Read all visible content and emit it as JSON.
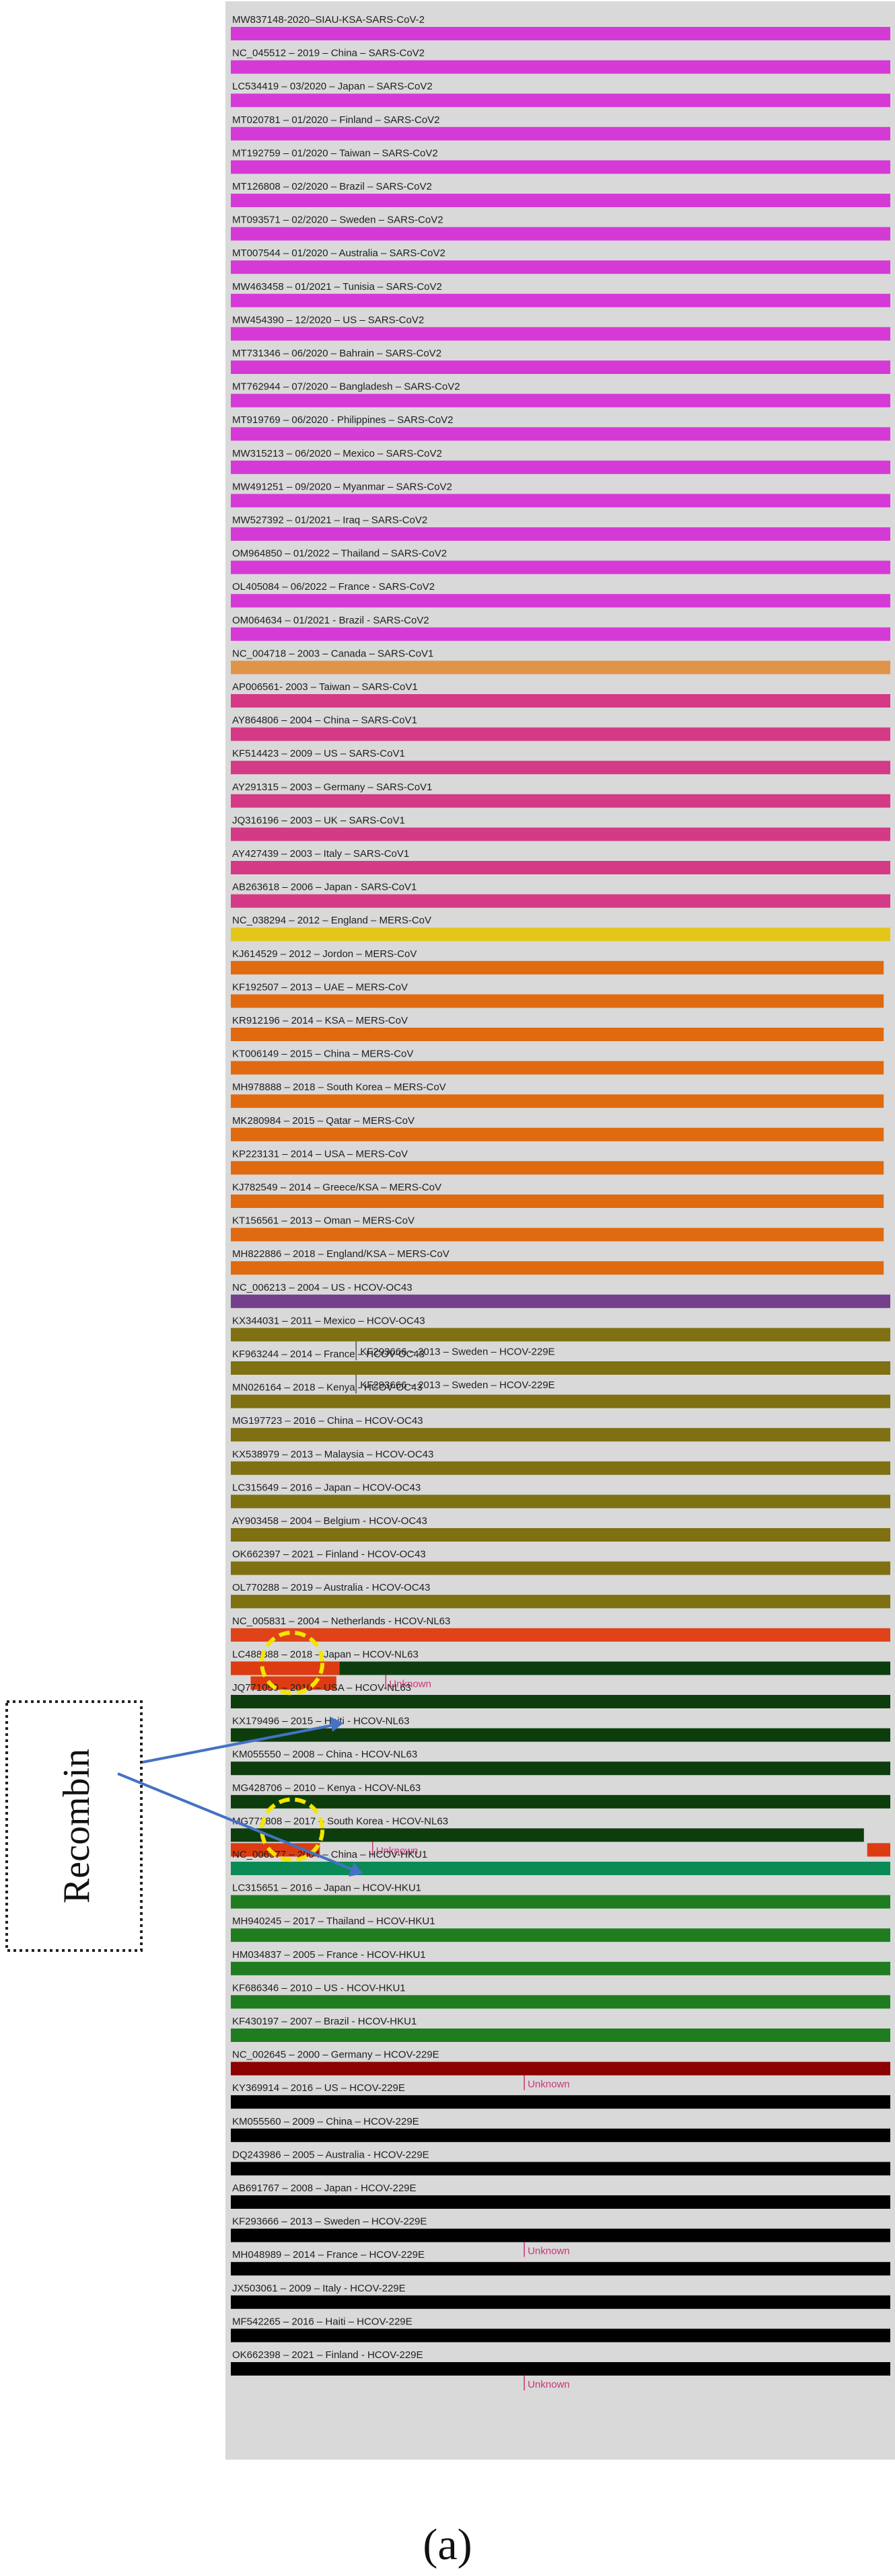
{
  "colors": {
    "panel_bg": "#d9d9d9",
    "sars_cov2": "#d63ad6",
    "sars_cov1_ref": "#e0944a",
    "sars_cov1": "#d43a86",
    "mers_ref": "#e3c61a",
    "mers": "#e06a10",
    "oc43_ref": "#74408c",
    "oc43": "#7f7012",
    "nl63_ref": "#e0421a",
    "nl63": "#0d3d0d",
    "recomb_segment": "#dd3c12",
    "hku1_ref": "#0a8a55",
    "hku1": "#1f7d1f",
    "e229_ref": "#8b0000",
    "e229": "#000000",
    "unknown_text": "#cc3377",
    "highlight_circle": "#f2e600",
    "arrow": "#4472c4"
  },
  "callout": {
    "text": "Recombin",
    "icon": "arrow-icon"
  },
  "caption": "(a)",
  "rows": [
    {
      "label": "MW837148-2020–SIAU-KSA-SARS-CoV-2",
      "color_key": "sars_cov2"
    },
    {
      "label": "NC_045512 – 2019 – China – SARS-CoV2",
      "color_key": "sars_cov2"
    },
    {
      "label": "LC534419 – 03/2020 – Japan – SARS-CoV2",
      "color_key": "sars_cov2"
    },
    {
      "label": "MT020781 – 01/2020 – Finland – SARS-CoV2",
      "color_key": "sars_cov2"
    },
    {
      "label": "MT192759 – 01/2020 – Taiwan – SARS-CoV2",
      "color_key": "sars_cov2"
    },
    {
      "label": "MT126808 – 02/2020 – Brazil – SARS-CoV2",
      "color_key": "sars_cov2"
    },
    {
      "label": "MT093571 – 02/2020 – Sweden – SARS-CoV2",
      "color_key": "sars_cov2"
    },
    {
      "label": "MT007544 – 01/2020 – Australia – SARS-CoV2",
      "color_key": "sars_cov2"
    },
    {
      "label": "MW463458 – 01/2021 – Tunisia – SARS-CoV2",
      "color_key": "sars_cov2"
    },
    {
      "label": "MW454390 – 12/2020 – US – SARS-CoV2",
      "color_key": "sars_cov2"
    },
    {
      "label": "MT731346 – 06/2020 – Bahrain – SARS-CoV2",
      "color_key": "sars_cov2"
    },
    {
      "label": "MT762944 – 07/2020 – Bangladesh – SARS-CoV2",
      "color_key": "sars_cov2"
    },
    {
      "label": "MT919769 – 06/2020 - Philippines – SARS-CoV2",
      "color_key": "sars_cov2"
    },
    {
      "label": "MW315213 – 06/2020 – Mexico – SARS-CoV2",
      "color_key": "sars_cov2"
    },
    {
      "label": "MW491251 – 09/2020 – Myanmar – SARS-CoV2",
      "color_key": "sars_cov2"
    },
    {
      "label": "MW527392 – 01/2021 – Iraq – SARS-CoV2",
      "color_key": "sars_cov2"
    },
    {
      "label": "OM964850 – 01/2022 – Thailand – SARS-CoV2",
      "color_key": "sars_cov2"
    },
    {
      "label": "OL405084 – 06/2022 – France - SARS-CoV2",
      "color_key": "sars_cov2"
    },
    {
      "label": "OM064634 – 01/2021 - Brazil - SARS-CoV2",
      "color_key": "sars_cov2"
    },
    {
      "label": "NC_004718 – 2003 – Canada – SARS-CoV1",
      "color_key": "sars_cov1_ref"
    },
    {
      "label": "AP006561- 2003 – Taiwan – SARS-CoV1",
      "color_key": "sars_cov1"
    },
    {
      "label": "AY864806 – 2004 – China – SARS-CoV1",
      "color_key": "sars_cov1"
    },
    {
      "label": "KF514423 – 2009 – US – SARS-CoV1",
      "color_key": "sars_cov1"
    },
    {
      "label": "AY291315 – 2003 – Germany – SARS-CoV1",
      "color_key": "sars_cov1"
    },
    {
      "label": "JQ316196 – 2003 – UK – SARS-CoV1",
      "color_key": "sars_cov1"
    },
    {
      "label": "AY427439 – 2003 – Italy – SARS-CoV1",
      "color_key": "sars_cov1"
    },
    {
      "label": "AB263618 – 2006 – Japan - SARS-CoV1",
      "color_key": "sars_cov1"
    },
    {
      "label": "NC_038294 – 2012 – England – MERS-CoV",
      "color_key": "mers_ref"
    },
    {
      "label": "KJ614529 – 2012 – Jordon – MERS-CoV",
      "color_key": "mers",
      "bar_end": 0.99
    },
    {
      "label": "KF192507 – 2013 – UAE – MERS-CoV",
      "color_key": "mers",
      "bar_end": 0.99
    },
    {
      "label": "KR912196 – 2014 – KSA – MERS-CoV",
      "color_key": "mers",
      "bar_end": 0.99
    },
    {
      "label": "KT006149 – 2015 – China – MERS-CoV",
      "color_key": "mers",
      "bar_end": 0.99
    },
    {
      "label": "MH978888 – 2018 – South Korea – MERS-CoV",
      "color_key": "mers",
      "bar_end": 0.99
    },
    {
      "label": "MK280984 – 2015 – Qatar – MERS-CoV",
      "color_key": "mers",
      "bar_end": 0.99
    },
    {
      "label": "KP223131 – 2014 – USA – MERS-CoV",
      "color_key": "mers",
      "bar_end": 0.99
    },
    {
      "label": "KJ782549 – 2014 – Greece/KSA – MERS-CoV",
      "color_key": "mers",
      "bar_end": 0.99
    },
    {
      "label": "KT156561 – 2013 – Oman – MERS-CoV",
      "color_key": "mers",
      "bar_end": 0.99
    },
    {
      "label": "MH822886 – 2018 – England/KSA – MERS-CoV",
      "color_key": "mers",
      "bar_end": 0.99
    },
    {
      "label": "NC_006213 – 2004 – US - HCOV-OC43",
      "color_key": "oc43_ref"
    },
    {
      "label": "KX344031 – 2011 – Mexico – HCOV-OC43",
      "color_key": "oc43",
      "insert": {
        "label": "KF293666 – 2013 – Sweden – HCOV-229E",
        "pos": 0.19
      }
    },
    {
      "label": "KF963244 – 2014 – France – HCOV-OC43",
      "color_key": "oc43",
      "insert": {
        "label": "KF293666 – 2013 – Sweden – HCOV-229E",
        "pos": 0.19
      }
    },
    {
      "label": "MN026164 – 2018 – Kenya - HCOV-OC43",
      "color_key": "oc43"
    },
    {
      "label": "MG197723 – 2016 – China – HCOV-OC43",
      "color_key": "oc43"
    },
    {
      "label": "KX538979 – 2013 – Malaysia – HCOV-OC43",
      "color_key": "oc43"
    },
    {
      "label": "LC315649 – 2016 – Japan – HCOV-OC43",
      "color_key": "oc43"
    },
    {
      "label": "AY903458 – 2004 – Belgium - HCOV-OC43",
      "color_key": "oc43"
    },
    {
      "label": "OK662397 – 2021 – Finland - HCOV-OC43",
      "color_key": "oc43"
    },
    {
      "label": "OL770288 – 2019 – Australia - HCOV-OC43",
      "color_key": "oc43"
    },
    {
      "label": "NC_005831 – 2004 – Netherlands - HCOV-NL63",
      "color_key": "nl63_ref"
    },
    {
      "label": "LC488388 – 2018 – Japan – HCOV-NL63",
      "color_key": "nl63",
      "recomb": {
        "start": 0.0,
        "end": 0.165
      },
      "sub_segment": {
        "start": 0.03,
        "end": 0.16
      },
      "unknown": {
        "text": "Unknown",
        "pos": 0.235
      },
      "circle": true
    },
    {
      "label": "JQ771059 – 2010 – USA – HCOV-NL63",
      "color_key": "nl63"
    },
    {
      "label": "KX179496 – 2015 – Haiti - HCOV-NL63",
      "color_key": "nl63"
    },
    {
      "label": "KM055550 – 2008 – China - HCOV-NL63",
      "color_key": "nl63"
    },
    {
      "label": "MG428706 – 2010 – Kenya - HCOV-NL63",
      "color_key": "nl63"
    },
    {
      "label": "MG772808 – 2017 – South Korea - HCOV-NL63",
      "color_key": "nl63",
      "bar_end": 0.96,
      "sub_segment": {
        "start": 0.0,
        "end": 0.135
      },
      "tail_segment": {
        "start": 0.965,
        "end": 1.0
      },
      "unknown": {
        "text": "Unknown",
        "pos": 0.215
      },
      "circle": true
    },
    {
      "label": "NC_006577 – 2004 – China – HCOV-HKU1",
      "color_key": "hku1_ref"
    },
    {
      "label": "LC315651 – 2016 – Japan – HCOV-HKU1",
      "color_key": "hku1"
    },
    {
      "label": "MH940245 – 2017 – Thailand – HCOV-HKU1",
      "color_key": "hku1"
    },
    {
      "label": "HM034837 – 2005 – France - HCOV-HKU1",
      "color_key": "hku1"
    },
    {
      "label": "KF686346 – 2010 – US - HCOV-HKU1",
      "color_key": "hku1"
    },
    {
      "label": "KF430197 – 2007 – Brazil - HCOV-HKU1",
      "color_key": "hku1"
    },
    {
      "label": "NC_002645 – 2000 – Germany – HCOV-229E",
      "color_key": "e229_ref",
      "unknown": {
        "text": "Unknown",
        "pos": 0.445
      }
    },
    {
      "label": "KY369914 – 2016 – US – HCOV-229E",
      "color_key": "e229"
    },
    {
      "label": "KM055560 – 2009 – China – HCOV-229E",
      "color_key": "e229"
    },
    {
      "label": "DQ243986 – 2005 – Australia - HCOV-229E",
      "color_key": "e229"
    },
    {
      "label": "AB691767 – 2008 – Japan - HCOV-229E",
      "color_key": "e229"
    },
    {
      "label": "KF293666 – 2013 – Sweden – HCOV-229E",
      "color_key": "e229",
      "unknown": {
        "text": "Unknown",
        "pos": 0.445
      }
    },
    {
      "label": "MH048989 – 2014 – France – HCOV-229E",
      "color_key": "e229"
    },
    {
      "label": "JX503061 – 2009 – Italy - HCOV-229E",
      "color_key": "e229"
    },
    {
      "label": "MF542265 – 2016 – Haiti – HCOV-229E",
      "color_key": "e229"
    },
    {
      "label": "OK662398 – 2021 – Finland - HCOV-229E",
      "color_key": "e229",
      "unknown": {
        "text": "Unknown",
        "pos": 0.445
      }
    }
  ]
}
